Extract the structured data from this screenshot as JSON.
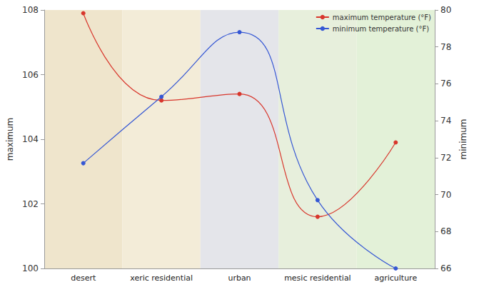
{
  "chart_data": {
    "type": "line",
    "categories": [
      "desert",
      "xeric residential",
      "urban",
      "mesic residential",
      "agriculture"
    ],
    "y_label": "maximum",
    "y2_label": "minimum",
    "ylim": [
      100,
      108
    ],
    "yticks": [
      100,
      102,
      104,
      106,
      108
    ],
    "y2lim": [
      66,
      80
    ],
    "y2ticks": [
      66,
      68,
      70,
      72,
      74,
      76,
      78,
      80
    ],
    "legend": "upper right",
    "grid": false,
    "series": [
      {
        "name": "maximum temperature (°F)",
        "color": "#d8362c",
        "marker": "circle",
        "line_style": "solid",
        "values": [
          107.9,
          105.2,
          105.4,
          101.6,
          103.9
        ]
      },
      {
        "name": "minimum temperature (°F)",
        "color": "#3557d4",
        "marker": "circle",
        "line_style": "solid",
        "axis": "y2",
        "values": [
          71.7,
          75.3,
          78.8,
          69.7,
          66.0
        ]
      }
    ]
  }
}
